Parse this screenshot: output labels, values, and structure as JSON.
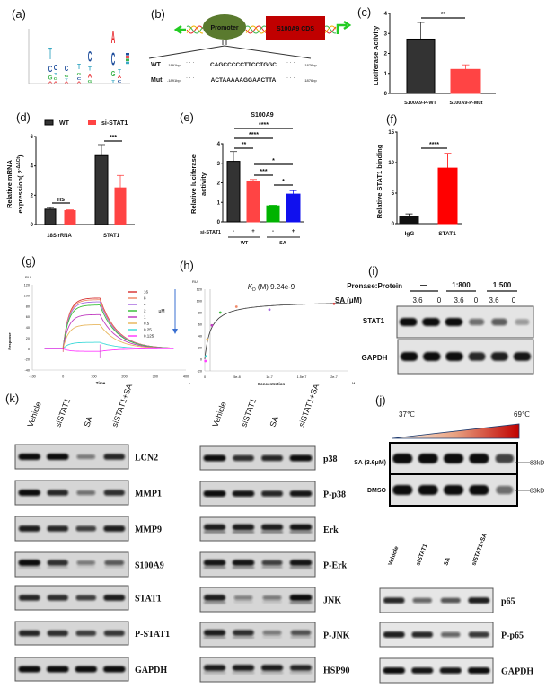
{
  "panels": {
    "a": "(a)",
    "b": "(b)",
    "c": "(c)",
    "d": "(d)",
    "e": "(e)",
    "f": "(f)",
    "g": "(g)",
    "h": "(h)",
    "i": "(i)",
    "j": "(j)",
    "k": "(k)"
  },
  "panel_b": {
    "promoter": "Promoter",
    "cds": "S100A9 CDS",
    "wt_label": "WT",
    "mut_label": "Mut",
    "start": "-1891bp",
    "end": "-1876bp",
    "dots": "· · ·",
    "wt_seq": "CAGCCCCCTTCCTGGC",
    "mut_seq": "ACTAAAAAGGAACTTA",
    "colors": {
      "promoter": "#5a7a2e",
      "promoter_text": "#f2e600",
      "cds": "#c00000",
      "arrow": "#22cc22"
    }
  },
  "chart_data": [
    {
      "id": "a",
      "type": "sequence-logo",
      "letter_colors": {
        "A": "#e8262b",
        "C": "#1f4e9c",
        "G": "#3cb44b",
        "T": "#3aa9c4"
      },
      "columns": [
        [
          [
            "A",
            3
          ],
          [
            "G",
            8
          ],
          [
            "C",
            12
          ],
          [
            "T",
            22
          ]
        ],
        [
          [
            "A",
            3
          ],
          [
            "G",
            5
          ],
          [
            "T",
            5
          ],
          [
            "C",
            10
          ]
        ],
        [
          [
            "A",
            3
          ],
          [
            "T",
            3
          ],
          [
            "G",
            6
          ],
          [
            "C",
            10
          ]
        ],
        [
          [
            "A",
            3
          ],
          [
            "C",
            5
          ],
          [
            "G",
            6
          ],
          [
            "T",
            10
          ]
        ],
        [
          [
            "G",
            5
          ],
          [
            "A",
            8
          ],
          [
            "T",
            8
          ],
          [
            "C",
            20
          ]
        ],
        [
          [
            "T",
            6
          ],
          [
            "G",
            10
          ],
          [
            "C",
            25
          ],
          [
            "A",
            22
          ]
        ],
        [
          [
            "C",
            5
          ],
          [
            "A",
            5
          ],
          [
            "T",
            8
          ]
        ]
      ]
    },
    {
      "id": "c",
      "type": "bar",
      "ylabel": "Luciferase Activity",
      "categories": [
        "S100A9-P-WT",
        "S100A9-P-Mut"
      ],
      "values": [
        2.72,
        1.2
      ],
      "errors": [
        0.83,
        0.23
      ],
      "colors": [
        "#333333",
        "#ff4444"
      ],
      "ylim": [
        0,
        4
      ],
      "yticks": [
        "0",
        "1",
        "2",
        "3",
        "4"
      ],
      "significance": [
        {
          "pair": [
            0,
            1
          ],
          "label": "**"
        }
      ]
    },
    {
      "id": "d",
      "type": "bar",
      "ylabel": {
        "line1": "Relative mRNA",
        "line2": "expression( 2",
        "sup": "-ΔΔCt",
        "close": ")"
      },
      "categories": [
        "18S rRNA",
        "STAT1"
      ],
      "series": [
        {
          "name": "WT",
          "values": [
            1.05,
            4.7
          ],
          "errors": [
            0.1,
            0.75
          ],
          "color": "#333333"
        },
        {
          "name": "si-STAT1",
          "values": [
            0.95,
            2.5
          ],
          "errors": [
            0.05,
            0.85
          ],
          "color": "#ff4444"
        }
      ],
      "ylim": [
        0,
        6
      ],
      "yticks": [
        "0",
        "2",
        "4",
        "6"
      ],
      "significance": [
        {
          "group": "18S rRNA",
          "label": "ns"
        },
        {
          "group": "STAT1",
          "label": "***"
        }
      ]
    },
    {
      "id": "e",
      "type": "bar",
      "title": "S100A9",
      "ylabel": {
        "line1": "Relative luciferase",
        "line2": "activity"
      },
      "values": [
        3.1,
        2.05,
        0.82,
        1.42
      ],
      "errors": [
        0.5,
        0.12,
        0.03,
        0.18
      ],
      "colors": [
        "#333333",
        "#ff4444",
        "#00b300",
        "#1010ee"
      ],
      "row_label": "si-STAT1",
      "row_values": [
        "-",
        "+",
        "-",
        "+"
      ],
      "groups": [
        "WT",
        "SA"
      ],
      "ylim": [
        0,
        4
      ],
      "yticks": [
        "0",
        "1",
        "2",
        "3",
        "4"
      ],
      "significance": [
        {
          "pair": [
            0,
            3
          ],
          "label": "****"
        },
        {
          "pair": [
            0,
            2
          ],
          "label": "****"
        },
        {
          "pair": [
            0,
            1
          ],
          "label": "**"
        },
        {
          "pair": [
            1,
            3
          ],
          "label": "*"
        },
        {
          "pair": [
            1,
            2
          ],
          "label": "***"
        },
        {
          "pair": [
            2,
            3
          ],
          "label": "*"
        }
      ]
    },
    {
      "id": "f",
      "type": "bar",
      "ylabel": "Relative STAT1 binding",
      "categories": [
        "IgG",
        "STAT1"
      ],
      "values": [
        1.2,
        9.1
      ],
      "errors": [
        0.4,
        2.4
      ],
      "colors": [
        "#111111",
        "#ff0000"
      ],
      "ylim": [
        0,
        15
      ],
      "yticks": [
        "0",
        "5",
        "10",
        "15"
      ],
      "significance": [
        {
          "pair": [
            0,
            1
          ],
          "label": "****"
        }
      ]
    },
    {
      "id": "g",
      "type": "line",
      "ylabel": "Response",
      "xlabel": "Time",
      "yunit": "RU",
      "xunit": "s",
      "xlim": [
        -100,
        400
      ],
      "xticks": [
        "-100",
        "0",
        "100",
        "200",
        "300",
        "400"
      ],
      "ylim": [
        -40,
        120
      ],
      "yticks": [
        "-40",
        "-20",
        "0",
        "20",
        "40",
        "60",
        "80",
        "100",
        "120"
      ],
      "legend_title": "μM",
      "injection_end": 120,
      "run_end": 360,
      "series": [
        {
          "name": "16",
          "plateau": 95,
          "color": "#d83a3a"
        },
        {
          "name": "8",
          "plateau": 92,
          "color": "#f08a6a"
        },
        {
          "name": "4",
          "plateau": 88,
          "color": "#a86be0"
        },
        {
          "name": "2",
          "plateau": 82,
          "color": "#3cc03c"
        },
        {
          "name": "1",
          "plateau": 64,
          "color": "#c03cc0"
        },
        {
          "name": "0.5",
          "plateau": 45,
          "color": "#e8b860"
        },
        {
          "name": "0.25",
          "plateau": 12,
          "color": "#40dada"
        },
        {
          "name": "0.125",
          "plateau": -5,
          "color": "#ff40ff"
        }
      ]
    },
    {
      "id": "h",
      "type": "scatter",
      "xlabel": "Concentration",
      "xunit": "M",
      "yunit": "RU",
      "kd_symbol": "K",
      "kd_sub": "D",
      "kd_text": " (M) 9.24e-9",
      "kd": 9.24e-09,
      "rmax": 100,
      "xlim": [
        0,
        2.2e-07
      ],
      "xticks": [
        "0",
        "5e-8",
        "1e-7",
        "1.5e-7",
        "2e-7"
      ],
      "xtick_values": [
        0,
        5e-08,
        1e-07,
        1.5e-07,
        2e-07
      ],
      "ylim": [
        -20,
        120
      ],
      "yticks": [
        "-20",
        "0",
        "20",
        "40",
        "60",
        "80",
        "100",
        "120"
      ],
      "points": [
        {
          "x": 1e-09,
          "y": -3,
          "color": "#ff40ff"
        },
        {
          "x": 2e-09,
          "y": 5,
          "color": "#40dada"
        },
        {
          "x": 4e-09,
          "y": 34,
          "color": "#e8b860"
        },
        {
          "x": 1.1e-08,
          "y": 58,
          "color": "#c03cc0"
        },
        {
          "x": 2.4e-08,
          "y": 80,
          "color": "#3cc03c"
        },
        {
          "x": 4.9e-08,
          "y": 90,
          "color": "#f08a6a"
        },
        {
          "x": 1e-07,
          "y": 85,
          "color": "#a86be0"
        },
        {
          "x": 2e-07,
          "y": 95,
          "color": "#d83a3a"
        }
      ]
    }
  ],
  "panel_i": {
    "pronase_label": "Pronase:Protein",
    "ratios": [
      "—",
      "1:800",
      "1:500"
    ],
    "sa_label": "SA (μM)",
    "sa_values": [
      "3.6",
      "0",
      "3.6",
      "0",
      "3.6",
      "0"
    ],
    "blots": [
      {
        "label": "STAT1",
        "bands": [
          1,
          1,
          1,
          0.45,
          0.55,
          0.2
        ]
      },
      {
        "label": "GAPDH",
        "bands": [
          1,
          1,
          1,
          0.85,
          0.9,
          0.95
        ]
      }
    ]
  },
  "panel_j": {
    "temp_low": "37℃",
    "temp_high": "69℃",
    "rows": [
      {
        "label": "SA (3.6μM)",
        "bands": [
          1,
          1,
          1,
          1,
          0.7
        ]
      },
      {
        "label": "DMSO",
        "bands": [
          1,
          1,
          1,
          1,
          0.45
        ]
      }
    ],
    "marker": "83kD",
    "gradient": [
      "#fff6e6",
      "#c00000"
    ]
  },
  "panel_k": {
    "lanes": [
      "Vehicle",
      "siSTAT1",
      "SA",
      "siSTAT1+SA"
    ],
    "left": [
      {
        "label": "LCN2",
        "bands": [
          1,
          1,
          0.35,
          0.85
        ]
      },
      {
        "label": "MMP1",
        "bands": [
          1,
          0.85,
          0.4,
          0.8
        ]
      },
      {
        "label": "MMP9",
        "bands": [
          0.9,
          0.85,
          0.7,
          0.9
        ]
      },
      {
        "label": "S100A9",
        "bands": [
          1,
          0.8,
          0.35,
          0.55
        ]
      },
      {
        "label": "STAT1",
        "bands": [
          0.85,
          0.8,
          0.7,
          0.9
        ]
      },
      {
        "label": "P-STAT1",
        "bands": [
          0.85,
          0.8,
          0.7,
          0.75
        ]
      },
      {
        "label": "GAPDH",
        "bands": [
          1,
          1,
          1,
          1
        ]
      }
    ],
    "middle": [
      {
        "label": "p38",
        "bands": [
          1,
          0.8,
          0.85,
          1
        ]
      },
      {
        "label": "P-p38",
        "bands": [
          1,
          0.95,
          0.85,
          0.95
        ]
      },
      {
        "label": "Erk",
        "bands": [
          0.9,
          0.9,
          0.9,
          0.95
        ]
      },
      {
        "label": "P-Erk",
        "bands": [
          0.95,
          0.95,
          0.7,
          0.95
        ]
      },
      {
        "label": "JNK",
        "bands": [
          0.9,
          0.3,
          0.35,
          1
        ]
      },
      {
        "label": "P-JNK",
        "bands": [
          0.9,
          0.8,
          0.35,
          0.6
        ]
      },
      {
        "label": "HSP90",
        "bands": [
          0.9,
          0.9,
          0.9,
          0.85
        ]
      }
    ],
    "right": [
      {
        "label": "p65",
        "bands": [
          0.85,
          0.5,
          0.6,
          0.9
        ]
      },
      {
        "label": "P-p65",
        "bands": [
          0.9,
          0.85,
          0.5,
          0.75
        ]
      },
      {
        "label": "GAPDH",
        "bands": [
          1,
          0.95,
          0.95,
          1
        ]
      }
    ]
  }
}
